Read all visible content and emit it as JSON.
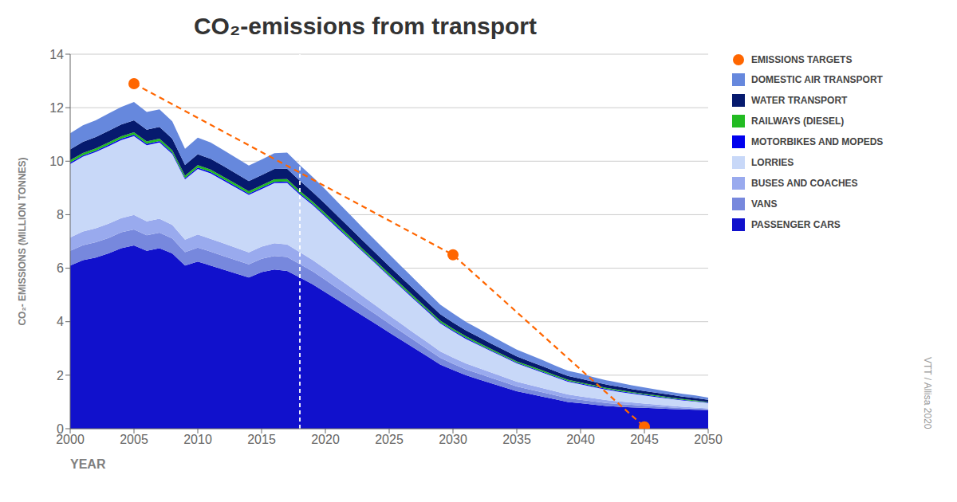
{
  "chart_data": {
    "type": "area",
    "stacked": true,
    "title": "CO₂-emissions from transport",
    "x_label": "YEAR",
    "y_label": "CO₂- EMISSIONS (MILLION TONNES)",
    "source": "VTT / Allisa 2020",
    "grid": true,
    "legend": "right",
    "xlim": [
      2000,
      2050
    ],
    "xticks": [
      2000,
      2005,
      2010,
      2015,
      2020,
      2025,
      2030,
      2035,
      2040,
      2045,
      2050
    ],
    "ylim": [
      0,
      14
    ],
    "yticks": [
      0,
      2,
      4,
      6,
      8,
      10,
      12,
      14
    ],
    "vlines": [
      2018
    ],
    "x": [
      2000,
      2001,
      2002,
      2003,
      2004,
      2005,
      2006,
      2007,
      2008,
      2009,
      2010,
      2011,
      2012,
      2013,
      2014,
      2015,
      2016,
      2017,
      2018,
      2019,
      2020,
      2021,
      2022,
      2023,
      2024,
      2025,
      2026,
      2027,
      2028,
      2029,
      2030,
      2031,
      2032,
      2033,
      2034,
      2035,
      2036,
      2037,
      2038,
      2039,
      2040,
      2041,
      2042,
      2043,
      2044,
      2045,
      2046,
      2047,
      2048,
      2049,
      2050
    ],
    "series": [
      {
        "name": "PASSENGER CARS",
        "type": "area",
        "color": "#1111CC",
        "values": [
          6.1,
          6.3,
          6.4,
          6.55,
          6.75,
          6.85,
          6.65,
          6.75,
          6.55,
          6.1,
          6.25,
          6.1,
          5.95,
          5.8,
          5.65,
          5.85,
          5.95,
          5.9,
          5.65,
          5.4,
          5.1,
          4.8,
          4.5,
          4.2,
          3.9,
          3.6,
          3.3,
          3.0,
          2.7,
          2.4,
          2.2,
          2.0,
          1.85,
          1.7,
          1.55,
          1.4,
          1.3,
          1.2,
          1.1,
          1.0,
          0.95,
          0.9,
          0.85,
          0.82,
          0.8,
          0.78,
          0.76,
          0.74,
          0.72,
          0.71,
          0.7
        ]
      },
      {
        "name": "VANS",
        "type": "area",
        "color": "#7788DD",
        "values": [
          0.55,
          0.56,
          0.57,
          0.58,
          0.59,
          0.6,
          0.58,
          0.58,
          0.56,
          0.5,
          0.52,
          0.52,
          0.51,
          0.5,
          0.49,
          0.5,
          0.51,
          0.52,
          0.5,
          0.48,
          0.46,
          0.43,
          0.41,
          0.38,
          0.36,
          0.33,
          0.31,
          0.29,
          0.27,
          0.25,
          0.23,
          0.22,
          0.21,
          0.2,
          0.19,
          0.18,
          0.17,
          0.16,
          0.15,
          0.14,
          0.13,
          0.12,
          0.11,
          0.1,
          0.09,
          0.08,
          0.07,
          0.06,
          0.05,
          0.04,
          0.03
        ]
      },
      {
        "name": "BUSES AND COACHES",
        "type": "area",
        "color": "#99AAEE",
        "values": [
          0.5,
          0.51,
          0.52,
          0.53,
          0.53,
          0.54,
          0.52,
          0.52,
          0.51,
          0.47,
          0.49,
          0.48,
          0.47,
          0.46,
          0.45,
          0.46,
          0.47,
          0.47,
          0.45,
          0.43,
          0.41,
          0.39,
          0.37,
          0.35,
          0.33,
          0.31,
          0.29,
          0.27,
          0.26,
          0.24,
          0.23,
          0.22,
          0.21,
          0.2,
          0.19,
          0.18,
          0.17,
          0.16,
          0.15,
          0.14,
          0.13,
          0.12,
          0.11,
          0.1,
          0.09,
          0.08,
          0.07,
          0.06,
          0.05,
          0.04,
          0.03
        ]
      },
      {
        "name": "LORRIES",
        "type": "area",
        "color": "#C8D8F8",
        "values": [
          2.75,
          2.8,
          2.85,
          2.9,
          2.92,
          2.95,
          2.85,
          2.85,
          2.65,
          2.25,
          2.45,
          2.45,
          2.35,
          2.25,
          2.15,
          2.15,
          2.25,
          2.3,
          2.15,
          2.05,
          1.95,
          1.85,
          1.75,
          1.65,
          1.55,
          1.45,
          1.35,
          1.25,
          1.15,
          1.05,
          0.98,
          0.92,
          0.86,
          0.8,
          0.74,
          0.68,
          0.63,
          0.58,
          0.53,
          0.48,
          0.45,
          0.42,
          0.39,
          0.36,
          0.33,
          0.3,
          0.28,
          0.26,
          0.24,
          0.22,
          0.2
        ]
      },
      {
        "name": "MOTORBIKES AND MOPEDS",
        "type": "area",
        "color": "#0000EE",
        "values": [
          0.05,
          0.05,
          0.05,
          0.05,
          0.05,
          0.05,
          0.05,
          0.05,
          0.05,
          0.05,
          0.05,
          0.05,
          0.05,
          0.05,
          0.05,
          0.05,
          0.05,
          0.05,
          0.05,
          0.05,
          0.05,
          0.05,
          0.04,
          0.04,
          0.04,
          0.04,
          0.04,
          0.04,
          0.04,
          0.04,
          0.04,
          0.04,
          0.03,
          0.03,
          0.03,
          0.03,
          0.03,
          0.03,
          0.03,
          0.03,
          0.03,
          0.03,
          0.03,
          0.03,
          0.03,
          0.03,
          0.03,
          0.02,
          0.02,
          0.02,
          0.02
        ]
      },
      {
        "name": "RAILWAYS (DIESEL)",
        "type": "area",
        "color": "#22BB22",
        "values": [
          0.09,
          0.09,
          0.09,
          0.09,
          0.09,
          0.09,
          0.09,
          0.09,
          0.09,
          0.09,
          0.09,
          0.09,
          0.09,
          0.09,
          0.09,
          0.09,
          0.09,
          0.09,
          0.09,
          0.08,
          0.08,
          0.08,
          0.08,
          0.07,
          0.07,
          0.07,
          0.07,
          0.07,
          0.06,
          0.06,
          0.06,
          0.06,
          0.06,
          0.05,
          0.05,
          0.05,
          0.05,
          0.05,
          0.04,
          0.04,
          0.04,
          0.04,
          0.04,
          0.04,
          0.03,
          0.03,
          0.03,
          0.03,
          0.03,
          0.03,
          0.02
        ]
      },
      {
        "name": "WATER TRANSPORT",
        "type": "area",
        "color": "#061A6E",
        "values": [
          0.4,
          0.41,
          0.42,
          0.43,
          0.44,
          0.45,
          0.44,
          0.44,
          0.43,
          0.4,
          0.41,
          0.4,
          0.4,
          0.39,
          0.38,
          0.38,
          0.39,
          0.39,
          0.38,
          0.36,
          0.35,
          0.33,
          0.32,
          0.31,
          0.29,
          0.28,
          0.27,
          0.26,
          0.25,
          0.24,
          0.23,
          0.22,
          0.21,
          0.2,
          0.19,
          0.18,
          0.17,
          0.16,
          0.15,
          0.14,
          0.14,
          0.13,
          0.12,
          0.12,
          0.11,
          0.11,
          0.1,
          0.1,
          0.09,
          0.09,
          0.08
        ]
      },
      {
        "name": "DOMESTIC AIR TRANSPORT",
        "type": "area",
        "color": "#6688DD",
        "values": [
          0.6,
          0.62,
          0.63,
          0.65,
          0.66,
          0.68,
          0.66,
          0.66,
          0.65,
          0.6,
          0.62,
          0.61,
          0.6,
          0.59,
          0.58,
          0.58,
          0.59,
          0.6,
          0.58,
          0.56,
          0.54,
          0.52,
          0.5,
          0.48,
          0.46,
          0.44,
          0.42,
          0.4,
          0.38,
          0.36,
          0.34,
          0.32,
          0.31,
          0.29,
          0.27,
          0.26,
          0.24,
          0.23,
          0.21,
          0.2,
          0.19,
          0.17,
          0.16,
          0.15,
          0.14,
          0.13,
          0.12,
          0.11,
          0.1,
          0.09,
          0.08
        ]
      },
      {
        "name": "EMISSIONS TARGETS",
        "type": "line",
        "color": "#FF6600",
        "line_style": "dashed",
        "marker": "circle",
        "x": [
          2005,
          2030,
          2045
        ],
        "values": [
          12.9,
          6.5,
          0.07
        ]
      }
    ]
  }
}
